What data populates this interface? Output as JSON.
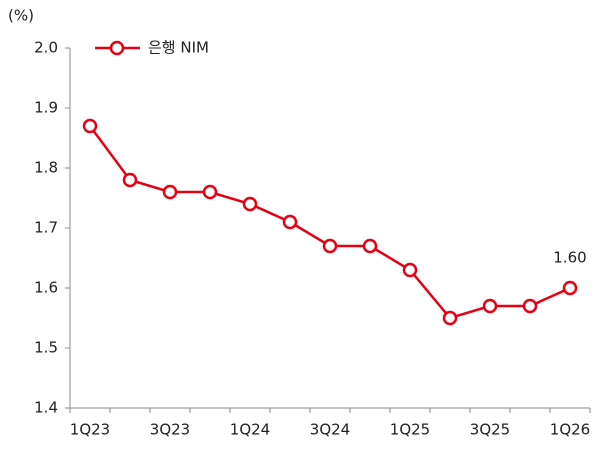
{
  "chart_data": {
    "type": "line",
    "y_axis_label": "(%)",
    "categories": [
      "1Q23",
      null,
      "3Q23",
      null,
      "1Q24",
      null,
      "3Q24",
      null,
      "1Q25",
      null,
      "3Q25",
      null,
      "1Q26"
    ],
    "series": [
      {
        "name": "은행 NIM",
        "color": "#e60012",
        "values": [
          1.87,
          1.78,
          1.76,
          1.76,
          1.74,
          1.71,
          1.67,
          1.67,
          1.63,
          1.55,
          1.57,
          1.57,
          1.6
        ],
        "value_labels": [
          null,
          null,
          null,
          null,
          null,
          null,
          null,
          null,
          null,
          null,
          null,
          null,
          "1.60"
        ]
      }
    ],
    "ylim": [
      1.4,
      2.0
    ],
    "yticks": [
      1.4,
      1.5,
      1.6,
      1.7,
      1.8,
      1.9,
      {
        "value": 2.0,
        "label": "2.0"
      }
    ],
    "legend": "top-left"
  }
}
